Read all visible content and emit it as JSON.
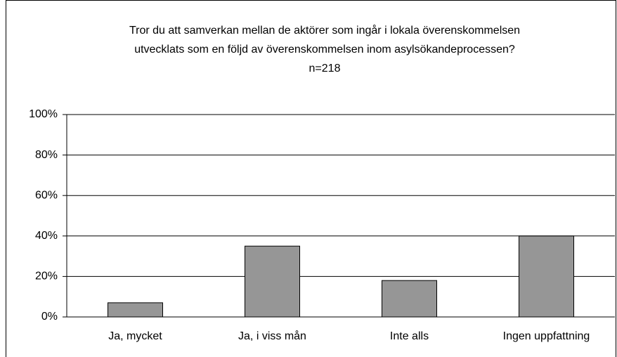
{
  "chart_data": {
    "type": "bar",
    "title": [
      "Tror du att samverkan mellan de aktörer som ingår i lokala överenskommelsen",
      "utvecklats som en följd av överenskommelsen inom asylsökandeprocessen?"
    ],
    "subtitle": "n=218",
    "categories": [
      "Ja, mycket",
      "Ja, i viss mån",
      "Inte alls",
      "Ingen uppfattning"
    ],
    "values": [
      7,
      35,
      18,
      40
    ],
    "color": "#969696",
    "ylim": [
      0,
      100
    ],
    "yticks": [
      {
        "value": 0,
        "label": "0%"
      },
      {
        "value": 20,
        "label": "20%"
      },
      {
        "value": 40,
        "label": "40%"
      },
      {
        "value": 60,
        "label": "60%"
      },
      {
        "value": 80,
        "label": "80%"
      },
      {
        "value": 100,
        "label": "100%"
      }
    ],
    "grid": true
  }
}
